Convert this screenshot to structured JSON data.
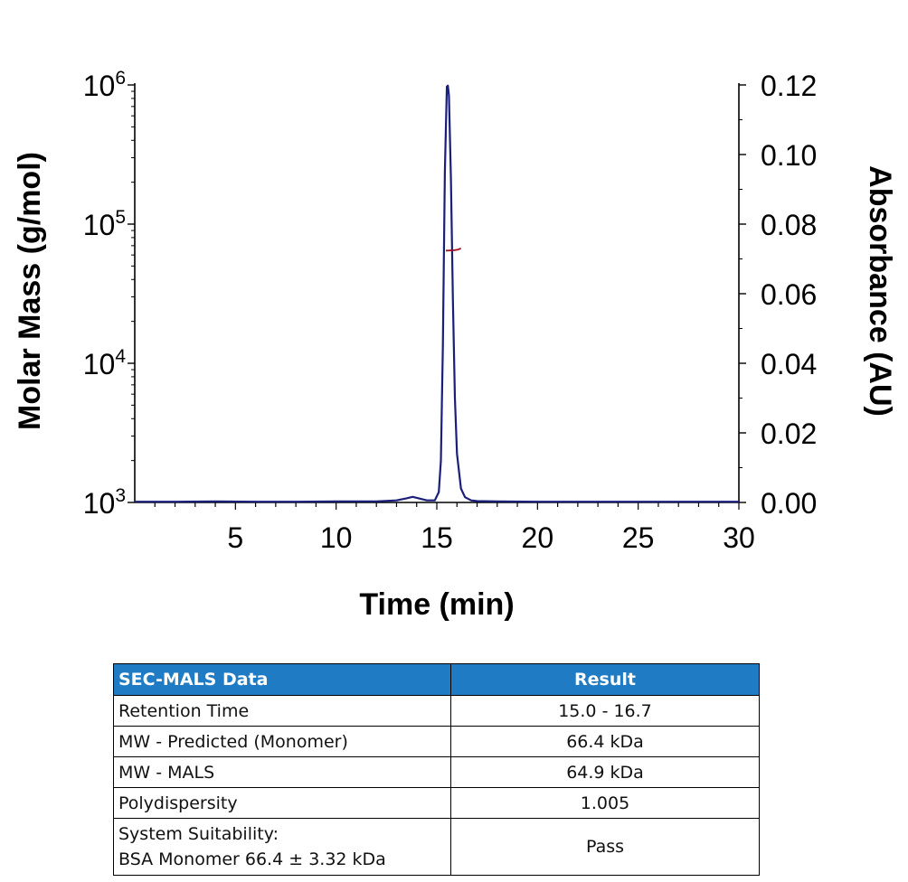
{
  "chart_data": {
    "type": "line",
    "xlabel": "Time (min)",
    "ylabel_left": "Molar Mass (g/mol)",
    "ylabel_right": "Absorbance (AU)",
    "xlim": [
      0,
      30
    ],
    "x_ticks": [
      5,
      10,
      15,
      20,
      25,
      30
    ],
    "ylim_left": [
      1000,
      1000000
    ],
    "y_left_scale": "log",
    "y_left_ticks": [
      {
        "value": 1000,
        "base": "10",
        "exp": "3"
      },
      {
        "value": 10000,
        "base": "10",
        "exp": "4"
      },
      {
        "value": 100000,
        "base": "10",
        "exp": "5"
      },
      {
        "value": 1000000,
        "base": "10",
        "exp": "6"
      }
    ],
    "ylim_right": [
      0,
      0.12
    ],
    "y_right_ticks": [
      "0.00",
      "0.02",
      "0.04",
      "0.06",
      "0.08",
      "0.10",
      "0.12"
    ],
    "grid": false,
    "series": [
      {
        "axis": "right",
        "color": "#1a1f7a",
        "x": [
          0,
          2,
          4,
          6,
          8,
          10,
          12,
          13.0,
          13.5,
          13.8,
          14.1,
          14.5,
          14.9,
          15.1,
          15.2,
          15.3,
          15.4,
          15.5,
          15.55,
          15.6,
          15.7,
          15.8,
          15.9,
          16.0,
          16.2,
          16.4,
          16.7,
          17.0,
          18,
          20,
          22,
          24,
          26,
          28,
          30
        ],
        "values": [
          0.0002,
          0.0002,
          0.0003,
          0.0002,
          0.0002,
          0.0003,
          0.0003,
          0.0006,
          0.0012,
          0.0016,
          0.0012,
          0.0006,
          0.0006,
          0.003,
          0.012,
          0.045,
          0.095,
          0.1195,
          0.1198,
          0.117,
          0.093,
          0.058,
          0.03,
          0.014,
          0.004,
          0.0015,
          0.0006,
          0.0004,
          0.0003,
          0.0002,
          0.0002,
          0.0002,
          0.0002,
          0.0002,
          0.0002
        ]
      },
      {
        "axis": "left",
        "color": "#a01020",
        "x": [
          15.45,
          15.6,
          15.75,
          15.9,
          16.05,
          16.2
        ],
        "values": [
          64500,
          64600,
          64800,
          65000,
          65600,
          67000
        ]
      }
    ]
  },
  "table": {
    "headers": [
      "SEC-MALS Data",
      "Result"
    ],
    "rows": [
      {
        "param": "Retention Time",
        "result": "15.0 - 16.7"
      },
      {
        "param": "MW - Predicted (Monomer)",
        "result": "66.4 kDa"
      },
      {
        "param": "MW - MALS",
        "result": "64.9 kDa"
      },
      {
        "param": "Polydispersity",
        "result": "1.005"
      },
      {
        "param": "System Suitability:",
        "param_line2": "BSA Monomer 66.4 ± 3.32 kDa",
        "result": "Pass"
      }
    ]
  }
}
